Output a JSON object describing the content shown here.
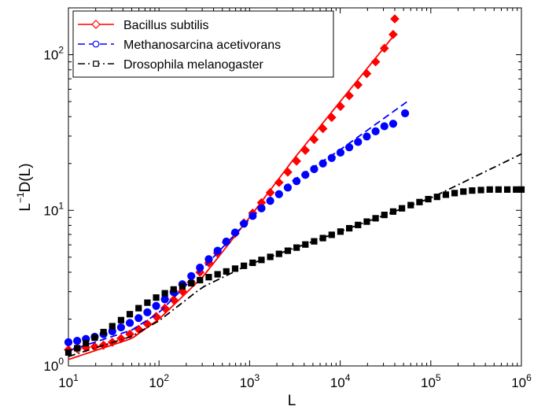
{
  "chart_data": {
    "type": "scatter",
    "title": "",
    "xlabel": "L",
    "ylabel_base": "L",
    "ylabel_exp": "−1",
    "ylabel_rest": "D(L)",
    "x_scale": "log",
    "y_scale": "log",
    "xlim": [
      10,
      1000000
    ],
    "ylim": [
      1,
      200
    ],
    "x_ticks": [
      {
        "base": "10",
        "exp": "1",
        "value": 10
      },
      {
        "base": "10",
        "exp": "2",
        "value": 100
      },
      {
        "base": "10",
        "exp": "3",
        "value": 1000
      },
      {
        "base": "10",
        "exp": "4",
        "value": 10000
      },
      {
        "base": "10",
        "exp": "5",
        "value": 100000
      },
      {
        "base": "10",
        "exp": "6",
        "value": 1000000
      }
    ],
    "y_ticks": [
      {
        "base": "10",
        "exp": "0",
        "value": 1
      },
      {
        "base": "10",
        "exp": "1",
        "value": 10
      },
      {
        "base": "10",
        "exp": "2",
        "value": 100
      }
    ],
    "grid": false,
    "legend_position": "top-left",
    "series": [
      {
        "name": "Bacillus subtilis",
        "color": "#ff0000",
        "marker": "diamond",
        "line_style": "solid",
        "legend_marker": "open-diamond",
        "points": [
          [
            10,
            1.27
          ],
          [
            12.5,
            1.29
          ],
          [
            15.6,
            1.31
          ],
          [
            19.5,
            1.33
          ],
          [
            24.4,
            1.36
          ],
          [
            30.5,
            1.42
          ],
          [
            38.1,
            1.5
          ],
          [
            47.6,
            1.6
          ],
          [
            59.5,
            1.72
          ],
          [
            74.4,
            1.86
          ],
          [
            93,
            2.08
          ],
          [
            116,
            2.35
          ],
          [
            145,
            2.66
          ],
          [
            181,
            3.02
          ],
          [
            227,
            3.45
          ],
          [
            283,
            4.0
          ],
          [
            354,
            4.6
          ],
          [
            443,
            5.3
          ],
          [
            553,
            6.2
          ],
          [
            692,
            7.1
          ],
          [
            865,
            8.3
          ],
          [
            1081,
            9.6
          ],
          [
            1351,
            11.2
          ],
          [
            1689,
            13.0
          ],
          [
            2111,
            15.1
          ],
          [
            2639,
            17.6
          ],
          [
            3299,
            20.7
          ],
          [
            4124,
            24.3
          ],
          [
            5155,
            28.5
          ],
          [
            6443,
            33.5
          ],
          [
            8054,
            39.5
          ],
          [
            10068,
            46.5
          ],
          [
            12585,
            54.5
          ],
          [
            15731,
            64.0
          ],
          [
            19664,
            75.5
          ],
          [
            24580,
            90.0
          ],
          [
            30725,
            110.0
          ],
          [
            38406,
            135.0
          ],
          [
            40000,
            170.0
          ]
        ],
        "fit": [
          [
            10,
            1.1
          ],
          [
            50,
            1.5
          ],
          [
            100,
            2.0
          ],
          [
            300,
            3.7
          ],
          [
            1000,
            9.0
          ],
          [
            3000,
            21.0
          ],
          [
            10000,
            50.0
          ],
          [
            40000,
            135.0
          ]
        ]
      },
      {
        "name": "Methanosarcina acetivorans",
        "color": "#0000ff",
        "marker": "circle",
        "line_style": "dashed",
        "legend_marker": "open-circle",
        "points": [
          [
            10,
            1.42
          ],
          [
            12.5,
            1.45
          ],
          [
            15.6,
            1.49
          ],
          [
            19.5,
            1.54
          ],
          [
            24.4,
            1.6
          ],
          [
            30.5,
            1.67
          ],
          [
            38.1,
            1.77
          ],
          [
            47.6,
            1.89
          ],
          [
            59.5,
            2.03
          ],
          [
            74.4,
            2.21
          ],
          [
            93,
            2.43
          ],
          [
            116,
            2.68
          ],
          [
            145,
            2.98
          ],
          [
            181,
            3.35
          ],
          [
            227,
            3.78
          ],
          [
            283,
            4.28
          ],
          [
            354,
            4.85
          ],
          [
            443,
            5.5
          ],
          [
            553,
            6.3
          ],
          [
            692,
            7.2
          ],
          [
            865,
            8.2
          ],
          [
            1081,
            9.2
          ],
          [
            1351,
            10.3
          ],
          [
            1689,
            11.5
          ],
          [
            2111,
            12.7
          ],
          [
            2639,
            14.0
          ],
          [
            3299,
            15.4
          ],
          [
            4124,
            16.9
          ],
          [
            5155,
            18.4
          ],
          [
            6443,
            20.0
          ],
          [
            8054,
            21.7
          ],
          [
            10068,
            23.5
          ],
          [
            12585,
            25.4
          ],
          [
            15731,
            27.5
          ],
          [
            19664,
            29.8
          ],
          [
            24580,
            32.2
          ],
          [
            30725,
            34.7
          ],
          [
            38406,
            36.0
          ],
          [
            52000,
            42.0
          ]
        ],
        "fit": [
          [
            10,
            1.25
          ],
          [
            50,
            1.7
          ],
          [
            100,
            2.2
          ],
          [
            300,
            4.2
          ],
          [
            1000,
            8.8
          ],
          [
            3000,
            15.5
          ],
          [
            10000,
            24.5
          ],
          [
            55000,
            50.0
          ]
        ]
      },
      {
        "name": "Drosophila melanogaster",
        "color": "#000000",
        "marker": "square",
        "line_style": "dashdot",
        "legend_marker": "open-square",
        "points": [
          [
            10,
            1.22
          ],
          [
            12.5,
            1.3
          ],
          [
            15.6,
            1.4
          ],
          [
            19.5,
            1.52
          ],
          [
            24.4,
            1.65
          ],
          [
            30.5,
            1.8
          ],
          [
            38.1,
            1.97
          ],
          [
            47.6,
            2.15
          ],
          [
            59.5,
            2.35
          ],
          [
            74.4,
            2.55
          ],
          [
            93,
            2.75
          ],
          [
            116,
            2.93
          ],
          [
            145,
            3.1
          ],
          [
            181,
            3.25
          ],
          [
            227,
            3.4
          ],
          [
            283,
            3.56
          ],
          [
            354,
            3.72
          ],
          [
            443,
            3.88
          ],
          [
            553,
            4.05
          ],
          [
            692,
            4.22
          ],
          [
            865,
            4.4
          ],
          [
            1081,
            4.6
          ],
          [
            1351,
            4.8
          ],
          [
            1689,
            5.02
          ],
          [
            2111,
            5.25
          ],
          [
            2639,
            5.5
          ],
          [
            3299,
            5.76
          ],
          [
            4124,
            6.03
          ],
          [
            5155,
            6.32
          ],
          [
            6443,
            6.63
          ],
          [
            8054,
            6.96
          ],
          [
            10068,
            7.3
          ],
          [
            12585,
            7.67
          ],
          [
            15731,
            8.05
          ],
          [
            19664,
            8.46
          ],
          [
            24580,
            8.89
          ],
          [
            30725,
            9.34
          ],
          [
            38406,
            9.82
          ],
          [
            48008,
            10.3
          ],
          [
            60010,
            10.8
          ],
          [
            75012,
            11.3
          ],
          [
            93765,
            11.8
          ],
          [
            117207,
            12.2
          ],
          [
            146508,
            12.6
          ],
          [
            183135,
            12.9
          ],
          [
            228919,
            13.2
          ],
          [
            286149,
            13.4
          ],
          [
            357686,
            13.5
          ],
          [
            447108,
            13.6
          ],
          [
            558885,
            13.6
          ],
          [
            698606,
            13.6
          ],
          [
            873258,
            13.6
          ],
          [
            1000000,
            13.6
          ]
        ],
        "fit": [
          [
            10,
            1.15
          ],
          [
            50,
            1.55
          ],
          [
            100,
            1.95
          ],
          [
            300,
            3.2
          ],
          [
            1000,
            4.5
          ],
          [
            10000,
            7.3
          ],
          [
            100000,
            12.0
          ],
          [
            1000000,
            23.0
          ]
        ]
      }
    ]
  }
}
